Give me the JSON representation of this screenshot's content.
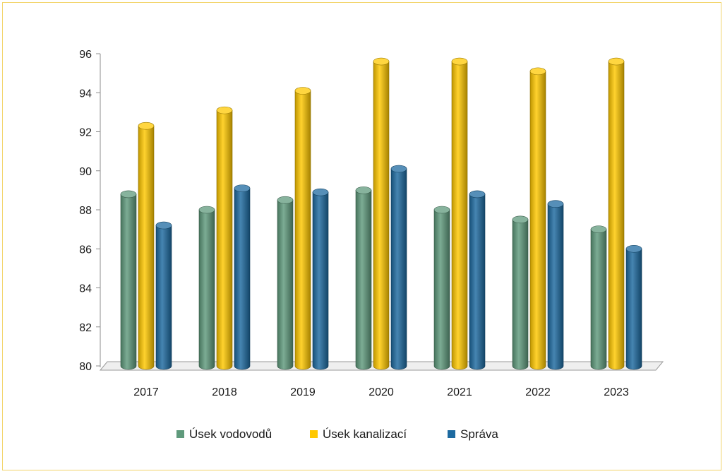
{
  "chart_data": {
    "type": "bar",
    "title": "",
    "xlabel": "",
    "ylabel": "",
    "categories": [
      "2017",
      "2018",
      "2019",
      "2020",
      "2021",
      "2022",
      "2023"
    ],
    "series": [
      {
        "name": "Úsek vodovodů",
        "color": "#5f9a7c",
        "values": [
          88.8,
          88.0,
          88.5,
          89.0,
          88.0,
          87.5,
          87.0
        ]
      },
      {
        "name": "Úsek kanalizací",
        "color": "#ffc800",
        "values": [
          92.3,
          93.1,
          94.1,
          95.6,
          95.6,
          95.1,
          95.6
        ]
      },
      {
        "name": "Správa",
        "color": "#1d6aa0",
        "values": [
          87.2,
          89.1,
          88.9,
          90.1,
          88.8,
          88.3,
          86.0
        ]
      }
    ],
    "ylim": [
      80,
      96
    ],
    "yticks": [
      80,
      82,
      84,
      86,
      88,
      90,
      92,
      94,
      96
    ],
    "grid": false,
    "legend": "bottom",
    "style": "3d-cylinder"
  }
}
